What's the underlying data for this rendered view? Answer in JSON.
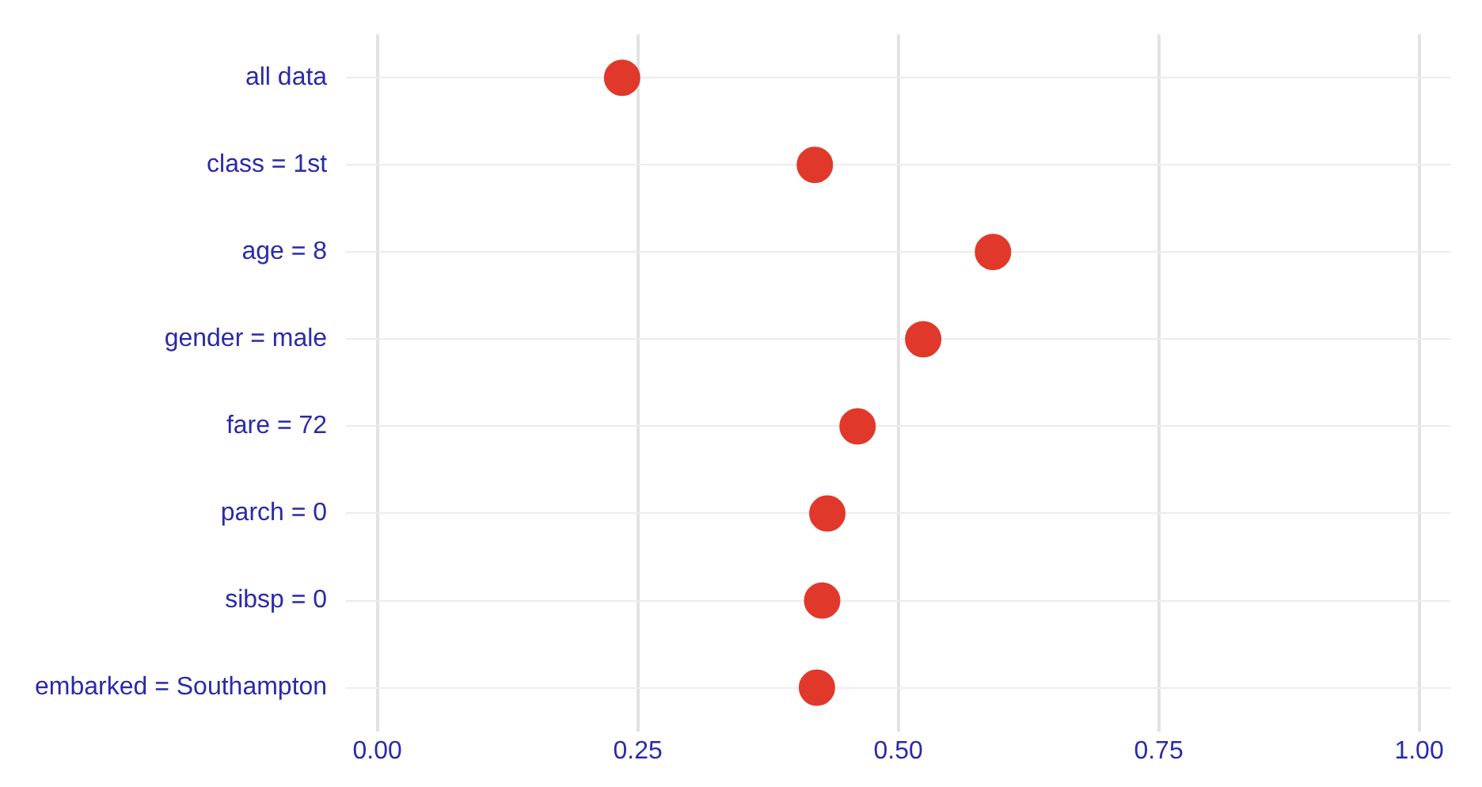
{
  "chart_data": {
    "type": "scatter",
    "orientation": "horizontal",
    "categories": [
      "all data",
      "class = 1st",
      "age = 8",
      "gender = male",
      "fare = 72",
      "parch = 0",
      "sibsp = 0",
      "embarked = Southampton"
    ],
    "series": [
      {
        "color": "#e0392b",
        "values": [
          0.235,
          0.42,
          0.591,
          0.524,
          0.461,
          0.432,
          0.427,
          0.422
        ]
      }
    ],
    "xlim": [
      -0.03,
      1.03
    ],
    "xticks": [
      {
        "value": 0,
        "label": "0.00"
      },
      {
        "value": 0.25,
        "label": "0.25"
      },
      {
        "value": 0.5,
        "label": "0.50"
      },
      {
        "value": 0.75,
        "label": "0.75"
      },
      {
        "value": 1,
        "label": "1.00"
      }
    ],
    "grid": true,
    "legend": false,
    "marker": "circle"
  }
}
